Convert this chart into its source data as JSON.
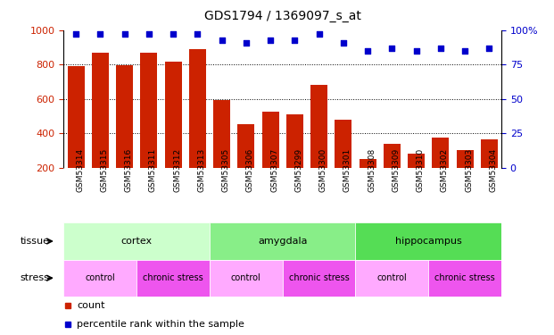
{
  "title": "GDS1794 / 1369097_s_at",
  "samples": [
    "GSM53314",
    "GSM53315",
    "GSM53316",
    "GSM53311",
    "GSM53312",
    "GSM53313",
    "GSM53305",
    "GSM53306",
    "GSM53307",
    "GSM53299",
    "GSM53300",
    "GSM53301",
    "GSM53308",
    "GSM53309",
    "GSM53310",
    "GSM53302",
    "GSM53303",
    "GSM53304"
  ],
  "counts": [
    790,
    870,
    795,
    870,
    815,
    890,
    595,
    450,
    525,
    510,
    680,
    480,
    250,
    340,
    280,
    375,
    300,
    365
  ],
  "percentiles": [
    97,
    97,
    97,
    97,
    97,
    97,
    93,
    91,
    93,
    93,
    97,
    91,
    85,
    87,
    85,
    87,
    85,
    87
  ],
  "bar_color": "#cc2200",
  "dot_color": "#0000cc",
  "ylim_left": [
    200,
    1000
  ],
  "ylim_right": [
    0,
    100
  ],
  "yticks_left": [
    200,
    400,
    600,
    800,
    1000
  ],
  "yticks_right": [
    0,
    25,
    50,
    75,
    100
  ],
  "grid_values": [
    400,
    600,
    800
  ],
  "tissue_groups": [
    {
      "label": "cortex",
      "start": 0,
      "end": 6,
      "color": "#ccffcc"
    },
    {
      "label": "amygdala",
      "start": 6,
      "end": 12,
      "color": "#88ee88"
    },
    {
      "label": "hippocampus",
      "start": 12,
      "end": 18,
      "color": "#55dd55"
    }
  ],
  "stress_groups": [
    {
      "label": "control",
      "start": 0,
      "end": 3,
      "color": "#ffaaff"
    },
    {
      "label": "chronic stress",
      "start": 3,
      "end": 6,
      "color": "#ee55ee"
    },
    {
      "label": "control",
      "start": 6,
      "end": 9,
      "color": "#ffaaff"
    },
    {
      "label": "chronic stress",
      "start": 9,
      "end": 12,
      "color": "#ee55ee"
    },
    {
      "label": "control",
      "start": 12,
      "end": 15,
      "color": "#ffaaff"
    },
    {
      "label": "chronic stress",
      "start": 15,
      "end": 18,
      "color": "#ee55ee"
    }
  ],
  "legend_count_label": "count",
  "legend_pct_label": "percentile rank within the sample",
  "tissue_label": "tissue",
  "stress_label": "stress",
  "bg_color": "#ffffff",
  "tick_label_color_left": "#cc2200",
  "tick_label_color_right": "#0000cc",
  "xlabel_bg": "#dddddd"
}
